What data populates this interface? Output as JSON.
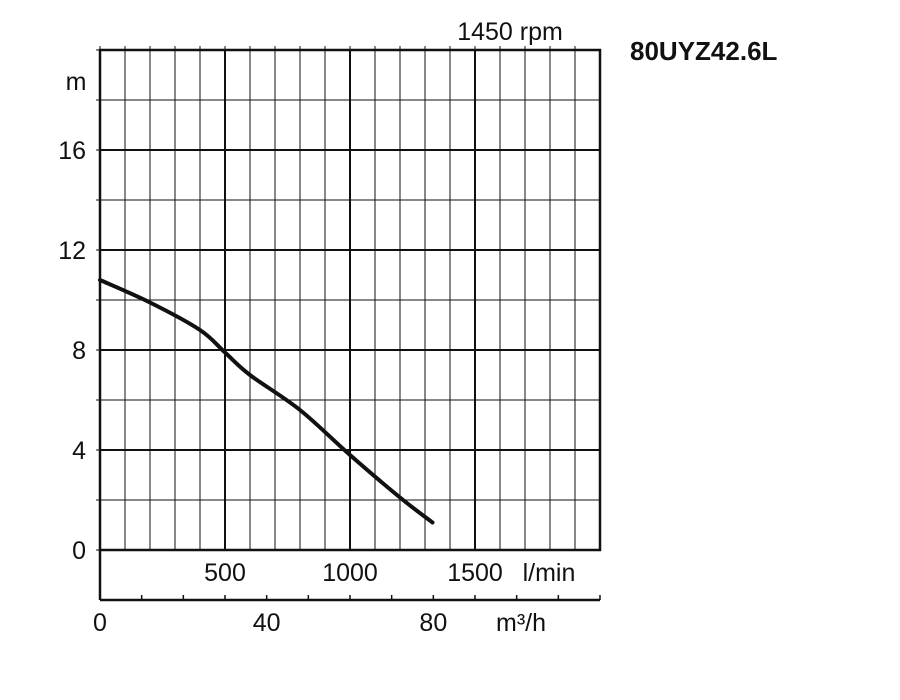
{
  "chart_data": {
    "type": "line",
    "model": "80UYZ42.6L",
    "speed_label": "1450 rpm",
    "y_unit": "m",
    "y_ticks": [
      "0",
      "4",
      "8",
      "12",
      "16"
    ],
    "ylim": [
      0,
      20
    ],
    "x_lmin": {
      "unit": "l/min",
      "ticks": [
        500,
        1000,
        1500
      ],
      "range": [
        0,
        2000
      ]
    },
    "x_m3h": {
      "unit": "m³/h",
      "ticks": [
        0,
        40,
        80
      ],
      "range": [
        0,
        120
      ]
    },
    "grid": true,
    "series": [
      {
        "x_lmin": [
          0,
          200,
          400,
          500,
          600,
          800,
          1000,
          1200,
          1330
        ],
        "y": [
          10.8,
          9.9,
          8.8,
          7.9,
          7.0,
          5.6,
          3.8,
          2.1,
          1.1
        ]
      }
    ]
  },
  "colors": {
    "line": "#111111",
    "grid": "#111111",
    "background": "#ffffff"
  }
}
